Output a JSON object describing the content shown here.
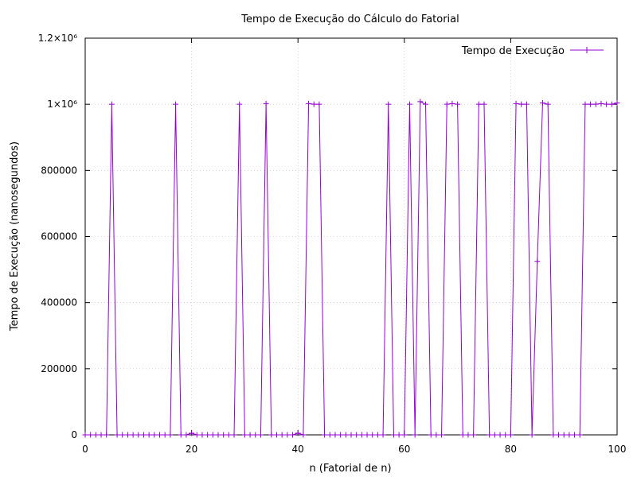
{
  "chart_data": {
    "type": "line",
    "title": "Tempo de Execução do Cálculo do Fatorial",
    "xlabel": "n (Fatorial de n)",
    "ylabel": "Tempo de Execução (nanosegundos)",
    "xlim": [
      0,
      100
    ],
    "ylim": [
      0,
      1200000
    ],
    "x_ticks": [
      0,
      20,
      40,
      60,
      80,
      100
    ],
    "y_ticks": [
      0,
      200000,
      400000,
      600000,
      800000,
      1000000,
      1200000
    ],
    "x_tick_labels": [
      "0",
      "20",
      "40",
      "60",
      "80",
      "100"
    ],
    "y_tick_labels": [
      "0",
      "200000",
      "400000",
      "600000",
      "800000",
      "1×10⁶",
      "1.2×10⁶"
    ],
    "grid": true,
    "legend_position": "top-right",
    "series": [
      {
        "name": "Tempo de Execução",
        "color": "#9400d3",
        "x": [
          0,
          1,
          2,
          3,
          4,
          5,
          6,
          7,
          8,
          9,
          10,
          11,
          12,
          13,
          14,
          15,
          16,
          17,
          18,
          19,
          20,
          21,
          22,
          23,
          24,
          25,
          26,
          27,
          28,
          29,
          30,
          31,
          32,
          33,
          34,
          35,
          36,
          37,
          38,
          39,
          40,
          41,
          42,
          43,
          44,
          45,
          46,
          47,
          48,
          49,
          50,
          51,
          52,
          53,
          54,
          55,
          56,
          57,
          58,
          59,
          60,
          61,
          62,
          63,
          64,
          65,
          66,
          67,
          68,
          69,
          70,
          71,
          72,
          73,
          74,
          75,
          76,
          77,
          78,
          79,
          80,
          81,
          82,
          83,
          84,
          85,
          86,
          87,
          88,
          89,
          90,
          91,
          92,
          93,
          94,
          95,
          96,
          97,
          98,
          99,
          100
        ],
        "y": [
          0,
          0,
          0,
          0,
          0,
          1000000,
          0,
          0,
          0,
          0,
          0,
          0,
          0,
          0,
          0,
          0,
          0,
          1000000,
          0,
          0,
          5000,
          0,
          0,
          0,
          0,
          0,
          0,
          0,
          0,
          1000000,
          0,
          0,
          0,
          0,
          1002000,
          0,
          0,
          0,
          0,
          0,
          5000,
          0,
          1002000,
          1000000,
          1000000,
          0,
          0,
          0,
          0,
          0,
          0,
          0,
          0,
          0,
          0,
          0,
          0,
          1000000,
          0,
          0,
          0,
          1000000,
          0,
          1008000,
          1000000,
          0,
          0,
          0,
          1000000,
          1002000,
          1000000,
          0,
          0,
          0,
          1000000,
          1000000,
          0,
          0,
          0,
          0,
          0,
          1002000,
          1000000,
          1000000,
          0,
          525000,
          1004000,
          1000000,
          0,
          0,
          0,
          0,
          0,
          0,
          1000000,
          1000000,
          1000000,
          1002000,
          1000000,
          1000000,
          1004000
        ]
      }
    ]
  }
}
